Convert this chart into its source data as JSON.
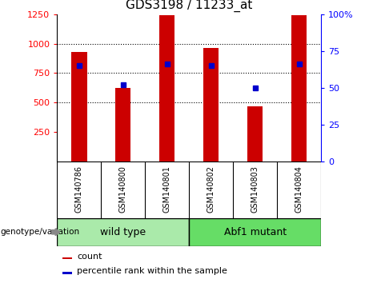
{
  "title": "GDS3198 / 11233_at",
  "samples": [
    "GSM140786",
    "GSM140800",
    "GSM140801",
    "GSM140802",
    "GSM140803",
    "GSM140804"
  ],
  "counts": [
    930,
    625,
    1240,
    960,
    465,
    1240
  ],
  "percentile_ranks": [
    65,
    52,
    66,
    65,
    50,
    66
  ],
  "groups": [
    {
      "label": "wild type",
      "n_samples": 3,
      "color": "#aaeaaa"
    },
    {
      "label": "Abf1 mutant",
      "n_samples": 3,
      "color": "#66dd66"
    }
  ],
  "ylim_left": [
    0,
    1250
  ],
  "ylim_right": [
    0,
    100
  ],
  "yticks_left": [
    250,
    500,
    750,
    1000,
    1250
  ],
  "yticks_right": [
    0,
    25,
    50,
    75,
    100
  ],
  "ytick_right_labels": [
    "0",
    "25",
    "50",
    "75",
    "100%"
  ],
  "bar_color": "#cc0000",
  "marker_color": "#0000cc",
  "bg_color": "#ffffff",
  "label_area_color": "#c8c8c8",
  "title_fontsize": 11,
  "tick_fontsize": 8,
  "label_fontsize": 7,
  "group_fontsize": 9,
  "legend_fontsize": 8,
  "bar_width": 0.35
}
